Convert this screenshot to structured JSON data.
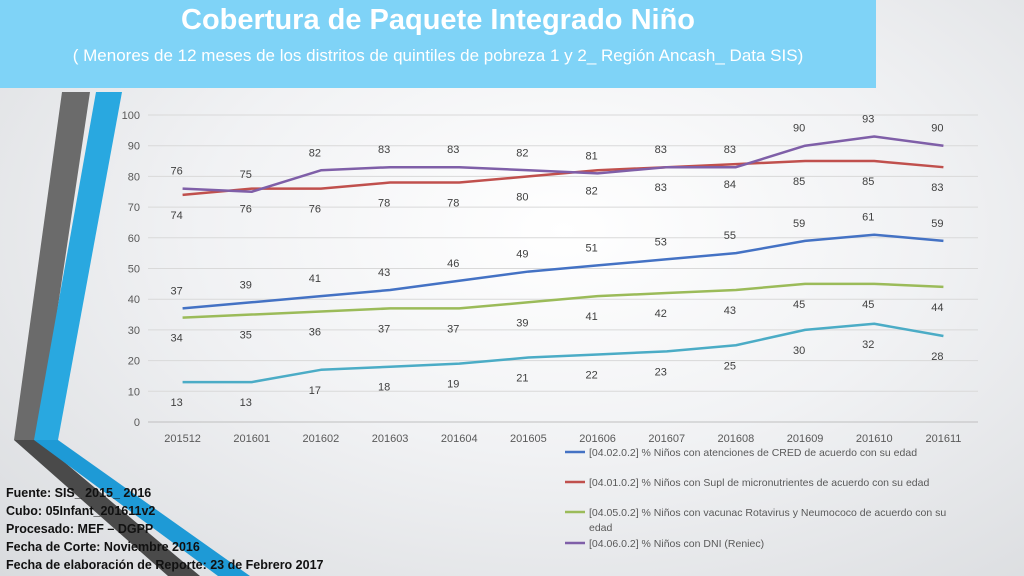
{
  "header": {
    "title": "Cobertura de Paquete Integrado Niño",
    "subtitle": "( Menores de 12 meses de los distritos de quintiles de pobreza 1 y 2_ Región Ancash_ Data SIS)"
  },
  "colors": {
    "title_bg": "#7fd3f7",
    "series": [
      "#4472c4",
      "#c0504d",
      "#9bbb59",
      "#7f5fa8",
      "#4bacc6"
    ]
  },
  "chart_data": {
    "type": "line",
    "categories": [
      "201512",
      "201601",
      "201602",
      "201603",
      "201604",
      "201605",
      "201606",
      "201607",
      "201608",
      "201609",
      "201610",
      "201611"
    ],
    "ylim": [
      0,
      100
    ],
    "yticks": [
      0,
      10,
      20,
      30,
      40,
      50,
      60,
      70,
      80,
      90,
      100
    ],
    "series": [
      {
        "name": "[04.02.0.2] % Niños  con atenciones de CRED de acuerdo con su edad",
        "values": [
          37,
          39,
          41,
          43,
          46,
          49,
          51,
          53,
          55,
          59,
          61,
          59
        ],
        "label_pos": "above"
      },
      {
        "name": "[04.01.0.2] % Niños con Supl de micronutrientes de acuerdo con su edad",
        "values": [
          74,
          76,
          76,
          78,
          78,
          80,
          82,
          83,
          84,
          85,
          85,
          83
        ],
        "label_pos": "below"
      },
      {
        "name": "[04.05.0.2] % Niños con vacunac Rotavirus y Neumococo de acuerdo con su edad",
        "values": [
          34,
          35,
          36,
          37,
          37,
          39,
          41,
          42,
          43,
          45,
          45,
          44
        ],
        "label_pos": "below"
      },
      {
        "name": "[04.06.0.2] % Niños con DNI (Reniec)",
        "values": [
          76,
          75,
          82,
          83,
          83,
          82,
          81,
          83,
          83,
          90,
          93,
          90
        ],
        "label_pos": "above"
      },
      {
        "name": "",
        "values": [
          13,
          13,
          17,
          18,
          19,
          21,
          22,
          23,
          25,
          30,
          32,
          28
        ],
        "label_pos": "below"
      }
    ],
    "legend": [
      "[04.02.0.2] % Niños  con atenciones de CRED de acuerdo con su edad",
      "[04.01.0.2] % Niños con Supl de micronutrientes de acuerdo con su edad",
      "[04.05.0.2] % Niños con vacunac Rotavirus y Neumococo de acuerdo con su",
      "edad",
      "[04.06.0.2] % Niños con DNI (Reniec)"
    ],
    "legend_position": "bottom-right"
  },
  "footer": {
    "lines": [
      "Fuente: SIS_ 2015_ 2016",
      "Cubo: 05Infant_201611v2",
      "Procesado: MEF – DGPP",
      "Fecha de Corte: Noviembre 2016",
      "Fecha de elaboración de Reporte: 23 de Febrero 2017"
    ]
  }
}
